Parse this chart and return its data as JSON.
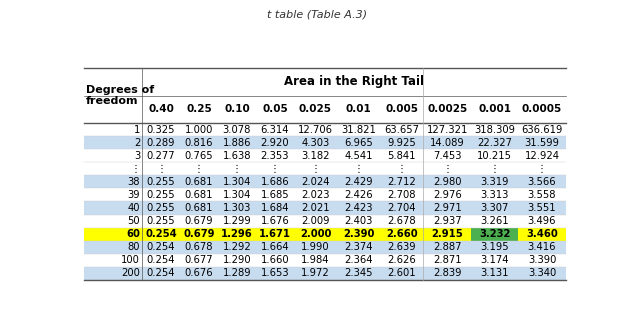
{
  "title": "t table (Table A.3)",
  "col_headers": [
    "Degrees of\nfreedom",
    "0.40",
    "0.25",
    "0.10",
    "0.05",
    "0.025",
    "0.01",
    "0.005",
    "0.0025",
    "0.001",
    "0.0005"
  ],
  "area_header": "Area in the Right Tail",
  "rows": [
    [
      "1",
      "0.325",
      "1.000",
      "3.078",
      "6.314",
      "12.706",
      "31.821",
      "63.657",
      "127.321",
      "318.309",
      "636.619"
    ],
    [
      "2",
      "0.289",
      "0.816",
      "1.886",
      "2.920",
      "4.303",
      "6.965",
      "9.925",
      "14.089",
      "22.327",
      "31.599"
    ],
    [
      "3",
      "0.277",
      "0.765",
      "1.638",
      "2.353",
      "3.182",
      "4.541",
      "5.841",
      "7.453",
      "10.215",
      "12.924"
    ],
    [
      "⋮",
      "⋮",
      "⋮",
      "⋮",
      "⋮",
      "⋮",
      "⋮",
      "⋮",
      "⋮",
      "⋮",
      "⋮"
    ],
    [
      "38",
      "0.255",
      "0.681",
      "1.304",
      "1.686",
      "2.024",
      "2.429",
      "2.712",
      "2.980",
      "3.319",
      "3.566"
    ],
    [
      "39",
      "0.255",
      "0.681",
      "1.304",
      "1.685",
      "2.023",
      "2.426",
      "2.708",
      "2.976",
      "3.313",
      "3.558"
    ],
    [
      "40",
      "0.255",
      "0.681",
      "1.303",
      "1.684",
      "2.021",
      "2.423",
      "2.704",
      "2.971",
      "3.307",
      "3.551"
    ],
    [
      "50",
      "0.255",
      "0.679",
      "1.299",
      "1.676",
      "2.009",
      "2.403",
      "2.678",
      "2.937",
      "3.261",
      "3.496"
    ],
    [
      "60",
      "0.254",
      "0.679",
      "1.296",
      "1.671",
      "2.000",
      "2.390",
      "2.660",
      "2.915",
      "3.232",
      "3.460"
    ],
    [
      "80",
      "0.254",
      "0.678",
      "1.292",
      "1.664",
      "1.990",
      "2.374",
      "2.639",
      "2.887",
      "3.195",
      "3.416"
    ],
    [
      "100",
      "0.254",
      "0.677",
      "1.290",
      "1.660",
      "1.984",
      "2.364",
      "2.626",
      "2.871",
      "3.174",
      "3.390"
    ],
    [
      "200",
      "0.254",
      "0.676",
      "1.289",
      "1.653",
      "1.972",
      "2.345",
      "2.601",
      "2.839",
      "3.131",
      "3.340"
    ]
  ],
  "highlight_row": 8,
  "highlight_col_green": 9,
  "yellow_bg": "#FFFF00",
  "green_bg": "#4CAF50",
  "blue_bg": "#C8DCF0",
  "white_bg": "#FFFFFF",
  "title_color": "#333333",
  "text_color": "#000000",
  "blue_rows": [
    1,
    4,
    6,
    9,
    11
  ]
}
